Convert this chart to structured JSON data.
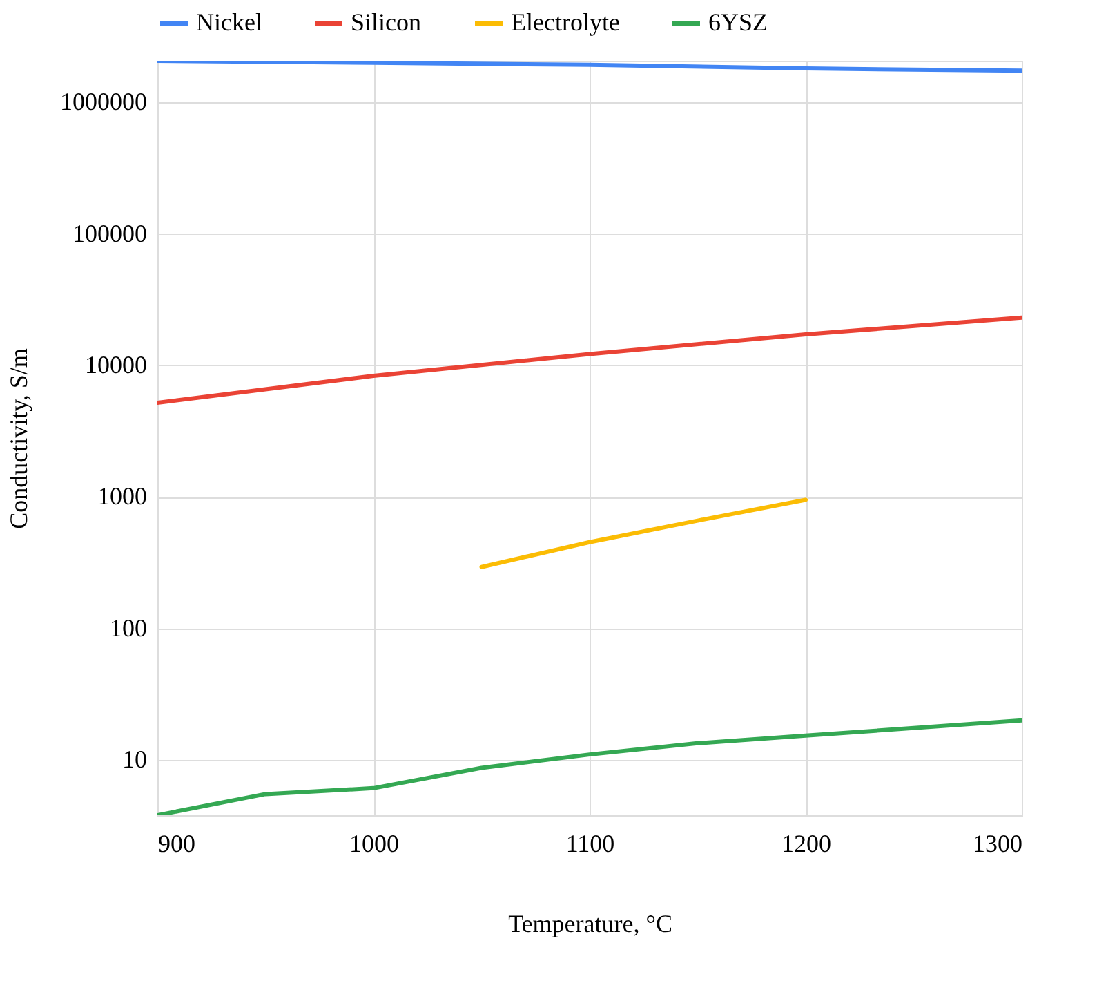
{
  "chart_data": {
    "type": "line",
    "xlabel": "Temperature, °C",
    "ylabel": "Conductivity, S/m",
    "x": [
      900,
      950,
      1000,
      1050,
      1100,
      1150,
      1200,
      1250,
      1300
    ],
    "series": [
      {
        "name": "Nickel",
        "color": "#4285f4",
        "values": [
          2070000,
          null,
          2000000,
          null,
          1930000,
          null,
          1810000,
          null,
          1740000
        ]
      },
      {
        "name": "Silicon",
        "color": "#ea4335",
        "values": [
          5200,
          null,
          8330,
          null,
          12200,
          null,
          17200,
          null,
          23100
        ]
      },
      {
        "name": "Electrolyte",
        "color": "#fbbc04",
        "values": [
          null,
          null,
          null,
          293,
          453,
          660,
          950,
          null,
          null
        ]
      },
      {
        "name": "6YSZ",
        "color": "#34a853",
        "values": [
          3.8,
          5.5,
          6.1,
          8.7,
          11,
          13.4,
          15.3,
          null,
          20
        ]
      }
    ],
    "log": true,
    "xlim": [
      900,
      1300
    ],
    "xticks": [
      900,
      1000,
      1100,
      1200,
      1300
    ],
    "ylim": [
      3.8,
      2070000
    ],
    "yticks": [
      10,
      100,
      1000,
      10000,
      100000,
      1000000
    ],
    "grid": true,
    "legend": "top",
    "marker": "none",
    "line_style": "solid"
  }
}
